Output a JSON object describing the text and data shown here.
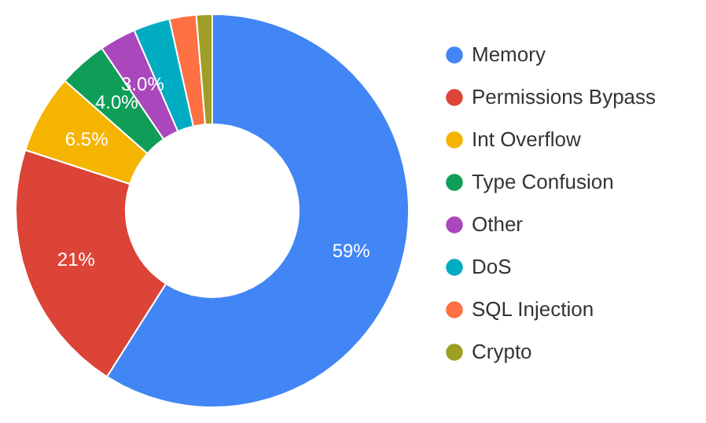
{
  "chart_data": {
    "type": "donut",
    "categories": [
      "Memory",
      "Permissions Bypass",
      "Int Overflow",
      "Type Confusion",
      "Other",
      "DoS",
      "SQL Injection",
      "Crypto"
    ],
    "values": [
      59,
      21,
      6.5,
      4.0,
      3.0,
      3.0,
      2.2,
      1.3
    ],
    "colors": [
      "#4285f4",
      "#db4437",
      "#f4b400",
      "#0f9d58",
      "#ab47bc",
      "#00acc1",
      "#ff7043",
      "#9e9d24"
    ],
    "value_labels": [
      "59%",
      "21%",
      "6.5%",
      "4.0%",
      "3.0%",
      null,
      null,
      null
    ],
    "legend": "right"
  }
}
